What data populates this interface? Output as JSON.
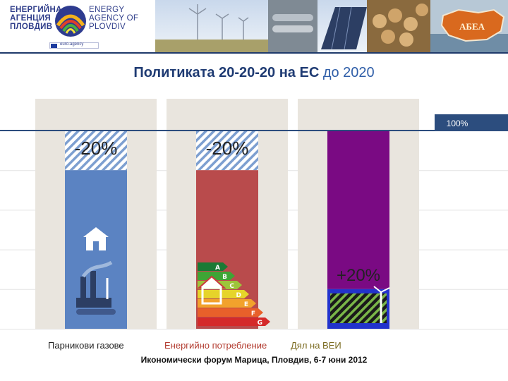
{
  "header": {
    "org_name_bg": "ЕНЕРГИЙНА АГЕНЦИЯ ПЛОВДИВ",
    "org_name_en": "ENERGY AGENCY OF PLOVDIV",
    "euro_strip_label": "euro-agency",
    "map_badge": "АБЕА"
  },
  "title": {
    "main": "Политиката 20-20-20 на ЕС",
    "accent": "до 2020"
  },
  "chart_data": {
    "type": "bar",
    "title": "Политиката 20-20-20 на ЕС до 2020",
    "categories": [
      "Парникови газове",
      "Енергийно потребление",
      "Дял на ВЕИ"
    ],
    "reference_line": {
      "value": 100,
      "label": "100%"
    },
    "base_values": [
      80,
      80,
      100
    ],
    "change_values": [
      -20,
      -20,
      20
    ],
    "change_labels": [
      "-20%",
      "-20%",
      "+20%"
    ],
    "bar_colors": [
      "#5b83c2",
      "#b94b4c",
      "#7a0a83"
    ],
    "renewable_band_color": "#2233cc",
    "ylim": [
      0,
      100
    ],
    "energy_class_labels": [
      "A",
      "B",
      "C",
      "D",
      "E",
      "F",
      "G"
    ],
    "energy_class_colors": [
      "#1a7a35",
      "#3fa535",
      "#9dc43a",
      "#e6d42a",
      "#f2a22c",
      "#e8602a",
      "#d42a2a"
    ]
  },
  "footer": {
    "note": "Икономически форум Марица, Пловдив, 6-7 юни 2012"
  }
}
